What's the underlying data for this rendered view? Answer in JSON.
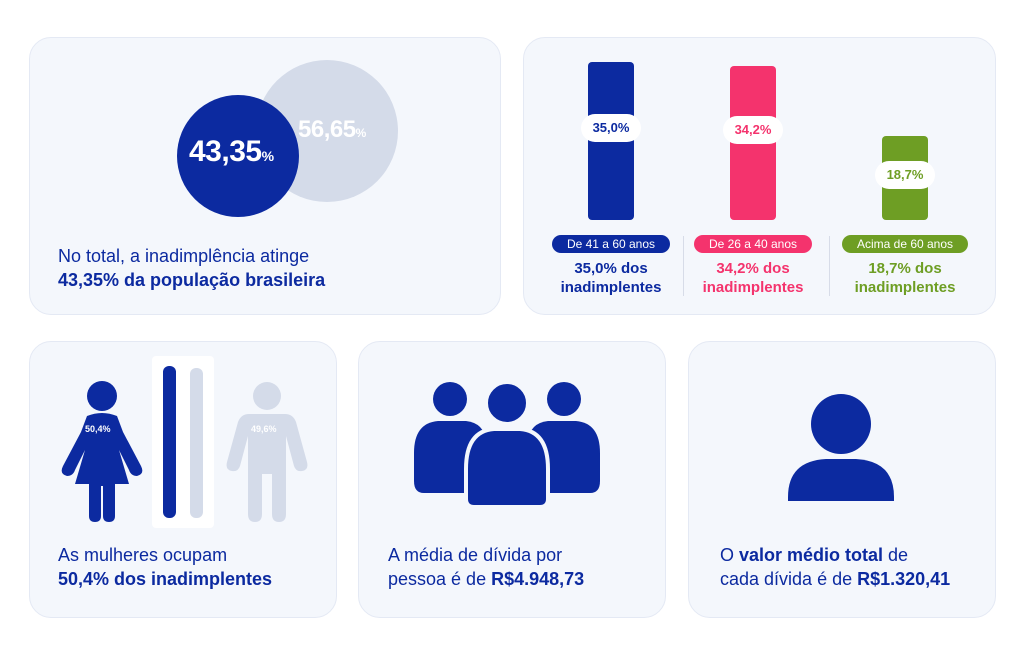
{
  "colors": {
    "navy": "#0c2aa0",
    "pink": "#f4336d",
    "green": "#6e9e24",
    "gray": "#d4dbe9",
    "card_bg": "#f4f7fc"
  },
  "total": {
    "inadimplente_value": "43,35",
    "inadimplente_unit": "%",
    "other_value": "56,65",
    "other_unit": "%",
    "caption_line1": "No total, a inadimplência atinge",
    "caption_line2": "43,35% da população brasileira"
  },
  "chart_data": {
    "type": "bar",
    "categories": [
      "De 41 a 60 anos",
      "De 26 a 40 anos",
      "Acima de 60 anos"
    ],
    "values": [
      35.0,
      34.2,
      18.7
    ],
    "value_labels": [
      "35,0%",
      "34,2%",
      "18,7%"
    ],
    "colors": [
      "#0c2aa0",
      "#f4336d",
      "#6e9e24"
    ],
    "descriptions": [
      [
        "35,0% dos",
        "inadimplentes"
      ],
      [
        "34,2% dos",
        "inadimplentes"
      ],
      [
        "18,7% dos",
        "inadimplentes"
      ]
    ],
    "ylim": [
      0,
      35
    ]
  },
  "gender": {
    "women_value": "50,4%",
    "men_value": "49,6%",
    "women_share": 50.4,
    "men_share": 49.6,
    "caption_line1": "As mulheres ocupam",
    "caption_line2": "50,4% dos inadimplentes"
  },
  "average": {
    "caption_line1": "A média de dívida por",
    "caption_line2_prefix": "pessoa é de ",
    "caption_line2_value": "R$4.948,73",
    "icon": "group-of-people-icon"
  },
  "value": {
    "caption_prefix": "O ",
    "caption_bold": "valor médio total",
    "caption_suffix": " de",
    "caption_line2_prefix": "cada dívida é de ",
    "caption_line2_value": "R$1.320,41",
    "icon": "person-icon"
  }
}
